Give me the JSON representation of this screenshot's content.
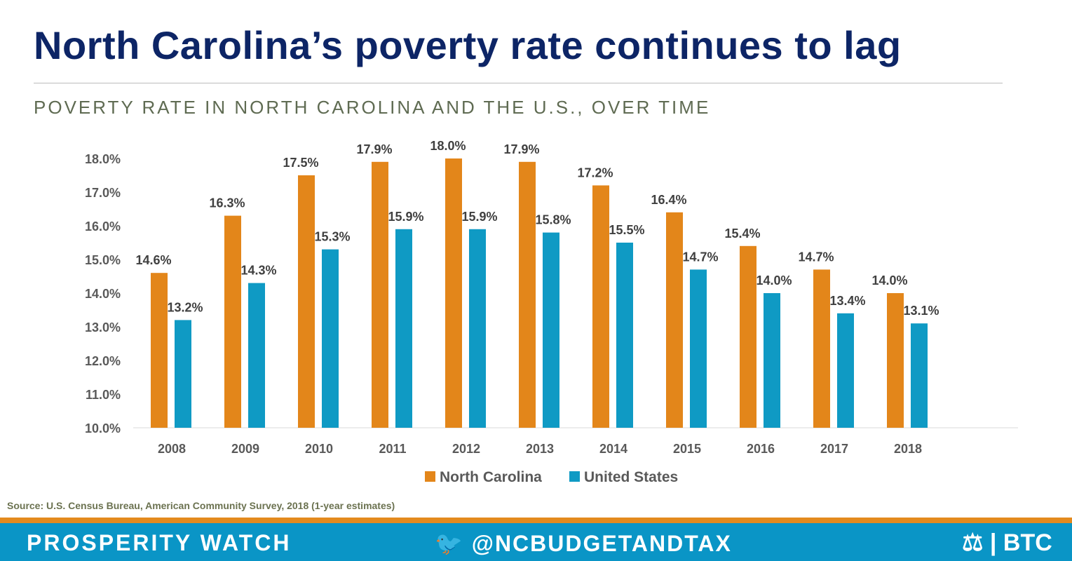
{
  "title": "North Carolina’s poverty rate continues to lag",
  "subtitle": "POVERTY RATE IN NORTH CAROLINA AND THE U.S., OVER TIME",
  "source": "Source: U.S. Census Bureau, American Community Survey, 2018 (1-year estimates)",
  "footer": {
    "brand": "PROSPERITY WATCH",
    "twitter_icon": "twitter-bird-icon",
    "twitter": "@NCBUDGETANDTAX",
    "logo": "BTC"
  },
  "chart_data": {
    "type": "bar",
    "categories": [
      "2008",
      "2009",
      "2010",
      "2011",
      "2012",
      "2013",
      "2014",
      "2015",
      "2016",
      "2017",
      "2018"
    ],
    "series": [
      {
        "name": "North Carolina",
        "color": "#e3861a",
        "values": [
          14.6,
          16.3,
          17.5,
          17.9,
          18.0,
          17.9,
          17.2,
          16.4,
          15.4,
          14.7,
          14.0
        ],
        "labels": [
          "14.6%",
          "16.3%",
          "17.5%",
          "17.9%",
          "18.0%",
          "17.9%",
          "17.2%",
          "16.4%",
          "15.4%",
          "14.7%",
          "14.0%"
        ]
      },
      {
        "name": "United States",
        "color": "#0f9ac4",
        "values": [
          13.2,
          14.3,
          15.3,
          15.9,
          15.9,
          15.8,
          15.5,
          14.7,
          14.0,
          13.4,
          13.1
        ],
        "labels": [
          "13.2%",
          "14.3%",
          "15.3%",
          "15.9%",
          "15.9%",
          "15.8%",
          "15.5%",
          "14.7%",
          "14.0%",
          "13.4%",
          "13.1%"
        ]
      }
    ],
    "yticks": [
      "10.0%",
      "11.0%",
      "12.0%",
      "13.0%",
      "14.0%",
      "15.0%",
      "16.0%",
      "17.0%",
      "18.0%"
    ],
    "ylim": [
      10,
      18
    ],
    "grid": false,
    "legend": "bottom"
  }
}
